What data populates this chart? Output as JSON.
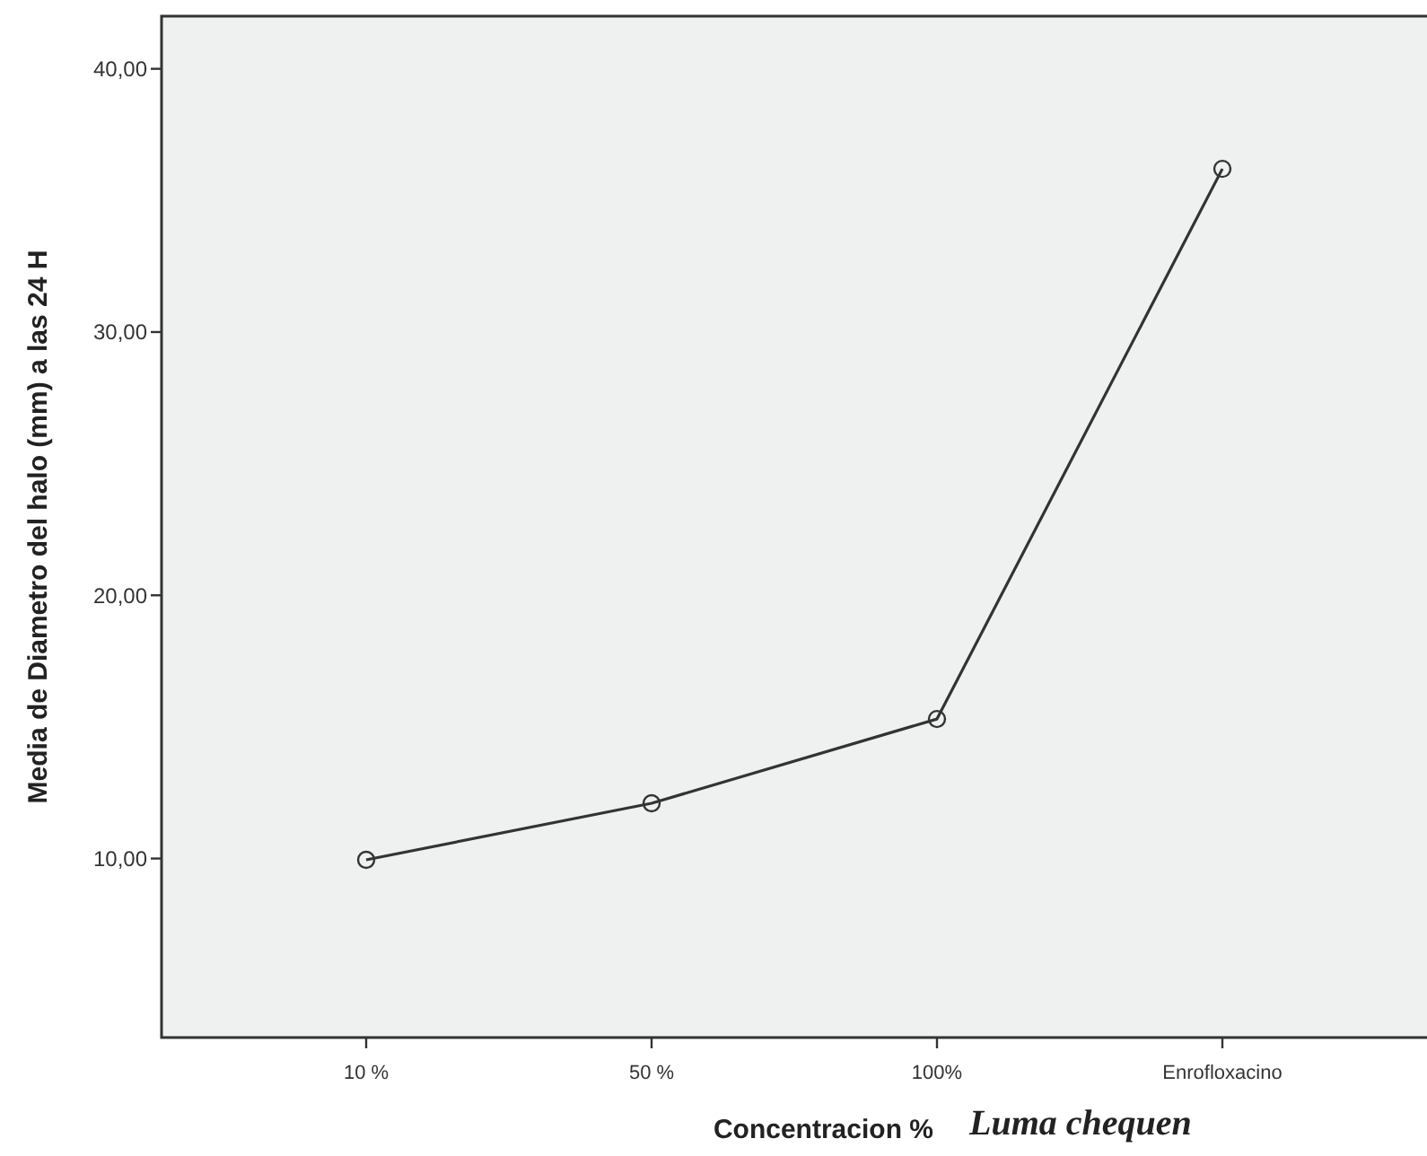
{
  "chart_data": {
    "type": "line",
    "xlabel": "Concentracion %",
    "ylabel": "Media de Diametro del halo (mm) a las 24 H",
    "annotations": [
      "Luma chequen"
    ],
    "categories": [
      "10 %",
      "50 %",
      "100%",
      "Enrofloxacino"
    ],
    "series": [
      {
        "color": "#333333",
        "values": [
          9.95,
          12.1,
          15.3,
          36.2
        ]
      }
    ],
    "ylim": [
      3.2,
      42.0
    ],
    "yticks": [
      {
        "value": 10,
        "label": "10,00"
      },
      {
        "value": 20,
        "label": "20,00"
      },
      {
        "value": 30,
        "label": "30,00"
      },
      {
        "value": 40,
        "label": "40,00"
      }
    ],
    "grid": false,
    "marker": "circle",
    "line_style": "solid"
  }
}
